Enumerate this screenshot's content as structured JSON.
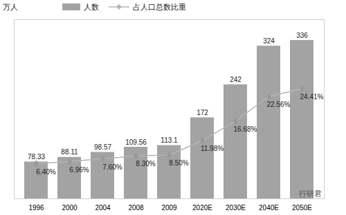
{
  "chart_data": {
    "type": "bar",
    "ylabel": "万人",
    "categories": [
      "1996",
      "2000",
      "2004",
      "2008",
      "2009",
      "2020E",
      "2030E",
      "2040E",
      "2050E"
    ],
    "series": [
      {
        "name": "人数",
        "type": "bar",
        "color": "#a3a3a3",
        "values": [
          78.33,
          88.11,
          98.57,
          109.56,
          113.1,
          172,
          242,
          324,
          336
        ]
      },
      {
        "name": "占人口总数比重",
        "type": "line",
        "axis": "y2",
        "color": "#b5b5b5",
        "marker": "diamond",
        "values": [
          6.4,
          6.96,
          7.6,
          8.3,
          8.5,
          11.98,
          16.68,
          22.56,
          24.41
        ],
        "value_labels": [
          "6.40%",
          "6.96%",
          "7.60%",
          "8.30%",
          "8.50%",
          "11.98%",
          "16.68%",
          "22.56%",
          "24.41%"
        ]
      }
    ],
    "ylim": [
      0,
      380
    ],
    "y2lim": [
      -2,
      41
    ],
    "data_labels": true,
    "tick_labels": "x",
    "grid": false,
    "legend": "top",
    "annotations": [
      "行研君"
    ]
  }
}
